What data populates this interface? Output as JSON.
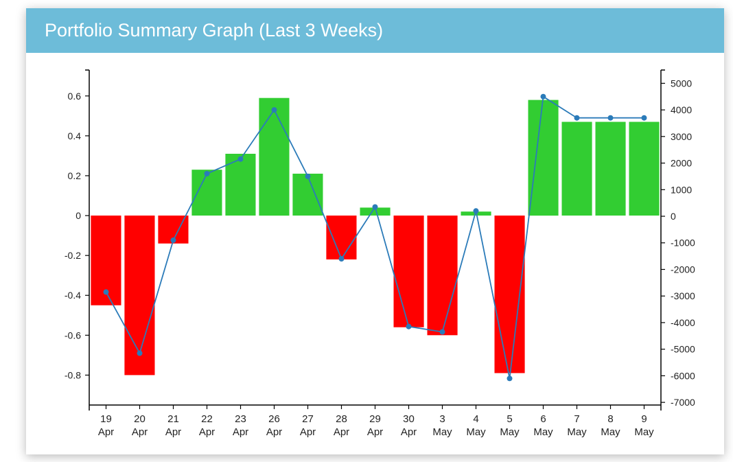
{
  "title": "Portfolio Summary Graph (Last 3 Weeks)",
  "chart_data": {
    "type": "bar+line",
    "categories": [
      [
        "19",
        "Apr"
      ],
      [
        "20",
        "Apr"
      ],
      [
        "21",
        "Apr"
      ],
      [
        "22",
        "Apr"
      ],
      [
        "23",
        "Apr"
      ],
      [
        "26",
        "Apr"
      ],
      [
        "27",
        "Apr"
      ],
      [
        "28",
        "Apr"
      ],
      [
        "29",
        "Apr"
      ],
      [
        "30",
        "Apr"
      ],
      [
        "3",
        "May"
      ],
      [
        "4",
        "May"
      ],
      [
        "5",
        "May"
      ],
      [
        "6",
        "May"
      ],
      [
        "7",
        "May"
      ],
      [
        "8",
        "May"
      ],
      [
        "9",
        "May"
      ]
    ],
    "bars": {
      "axis": "left",
      "values": [
        -0.45,
        -0.8,
        -0.14,
        0.23,
        0.31,
        0.59,
        0.21,
        -0.22,
        0.04,
        -0.56,
        -0.6,
        0.02,
        -0.79,
        0.58,
        0.47,
        0.47,
        0.47
      ]
    },
    "line": {
      "axis": "right",
      "values": [
        -2850,
        -5150,
        -900,
        1600,
        2150,
        4000,
        1500,
        -1600,
        350,
        -4150,
        -4350,
        200,
        -6100,
        4500,
        3700,
        3700,
        3700
      ]
    },
    "left_axis": {
      "ylim": [
        -0.95,
        0.73
      ],
      "ticks": [
        0.6,
        0.4,
        0.2,
        0,
        -0.2,
        -0.4,
        -0.6,
        -0.8
      ],
      "tick_labels": [
        "0.6",
        "0.4",
        "0.2",
        "0",
        "-0.2",
        "-0.4",
        "-0.6",
        "-0.8"
      ]
    },
    "right_axis": {
      "ylim": [
        -7100,
        5500
      ],
      "ticks": [
        5000,
        4000,
        3000,
        2000,
        1000,
        0,
        -1000,
        -2000,
        -3000,
        -4000,
        -5000,
        -6000,
        -7000
      ],
      "tick_labels": [
        "5000",
        "4000",
        "3000",
        "2000",
        "1000",
        "0",
        "-1000",
        "-2000",
        "-3000",
        "-4000",
        "-5000",
        "-6000",
        "-7000"
      ]
    },
    "colors": {
      "positive": "#32cd32",
      "negative": "#ff0000",
      "line": "#2b7bb9",
      "axis": "#000000"
    },
    "grid": false,
    "legend": "none"
  }
}
